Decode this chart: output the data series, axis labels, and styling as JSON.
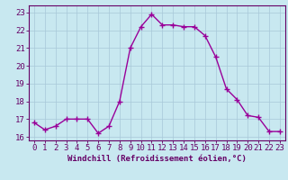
{
  "x": [
    0,
    1,
    2,
    3,
    4,
    5,
    6,
    7,
    8,
    9,
    10,
    11,
    12,
    13,
    14,
    15,
    16,
    17,
    18,
    19,
    20,
    21,
    22,
    23
  ],
  "y": [
    16.8,
    16.4,
    16.6,
    17.0,
    17.0,
    17.0,
    16.2,
    16.6,
    18.0,
    21.0,
    22.2,
    22.9,
    22.3,
    22.3,
    22.2,
    22.2,
    21.7,
    20.5,
    18.7,
    18.1,
    17.2,
    17.1,
    16.3,
    16.3
  ],
  "line_color": "#990099",
  "marker": "+",
  "marker_size": 4,
  "bg_color": "#c8e8f0",
  "grid_color": "#a8c8d8",
  "xlabel": "Windchill (Refroidissement éolien,°C)",
  "ylabel_ticks": [
    16,
    17,
    18,
    19,
    20,
    21,
    22,
    23
  ],
  "xlim": [
    -0.5,
    23.5
  ],
  "ylim": [
    15.8,
    23.4
  ],
  "xlabel_fontsize": 6.5,
  "tick_fontsize": 6.5,
  "line_width": 1.0,
  "axis_color": "#660066",
  "marker_edge_width": 1.0
}
